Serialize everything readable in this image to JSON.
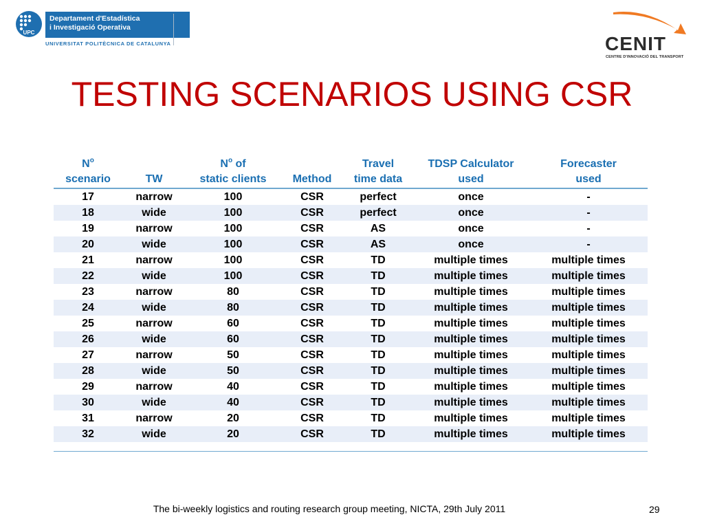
{
  "header": {
    "upc_line1": "Departament d'Estadística",
    "upc_line2": "i Investigació Operativa",
    "upc_mark": "UPC",
    "upc_university": "UNIVERSITAT POLITÈCNICA DE CATALUNYA",
    "cenit_name": "CENIT",
    "cenit_subtitle": "CENTRE D'INNOVACIÓ DEL TRANSPORT",
    "cenit_arrow_color": "#f07a23"
  },
  "slide": {
    "title": "TESTING SCENARIOS USING CSR"
  },
  "table": {
    "headers": [
      {
        "line1": "N",
        "sup": "o",
        "line1_rest": "",
        "line2": "scenario"
      },
      {
        "line1": "",
        "sup": "",
        "line1_rest": "",
        "line2": "TW"
      },
      {
        "line1": "N",
        "sup": "o",
        "line1_rest": " of",
        "line2": "static clients"
      },
      {
        "line1": "",
        "sup": "",
        "line1_rest": "",
        "line2": "Method"
      },
      {
        "line1": "Travel",
        "sup": "",
        "line1_rest": "",
        "line2": "time data"
      },
      {
        "line1": "TDSP Calculator",
        "sup": "",
        "line1_rest": "",
        "line2": "used"
      },
      {
        "line1": "Forecaster",
        "sup": "",
        "line1_rest": "",
        "line2": "used"
      }
    ],
    "rows": [
      [
        "17",
        "narrow",
        "100",
        "CSR",
        "perfect",
        "once",
        "-"
      ],
      [
        "18",
        "wide",
        "100",
        "CSR",
        "perfect",
        "once",
        "-"
      ],
      [
        "19",
        "narrow",
        "100",
        "CSR",
        "AS",
        "once",
        "-"
      ],
      [
        "20",
        "wide",
        "100",
        "CSR",
        "AS",
        "once",
        "-"
      ],
      [
        "21",
        "narrow",
        "100",
        "CSR",
        "TD",
        "multiple times",
        "multiple times"
      ],
      [
        "22",
        "wide",
        "100",
        "CSR",
        "TD",
        "multiple times",
        "multiple times"
      ],
      [
        "23",
        "narrow",
        "80",
        "CSR",
        "TD",
        "multiple times",
        "multiple times"
      ],
      [
        "24",
        "wide",
        "80",
        "CSR",
        "TD",
        "multiple times",
        "multiple times"
      ],
      [
        "25",
        "narrow",
        "60",
        "CSR",
        "TD",
        "multiple times",
        "multiple times"
      ],
      [
        "26",
        "wide",
        "60",
        "CSR",
        "TD",
        "multiple times",
        "multiple times"
      ],
      [
        "27",
        "narrow",
        "50",
        "CSR",
        "TD",
        "multiple times",
        "multiple times"
      ],
      [
        "28",
        "wide",
        "50",
        "CSR",
        "TD",
        "multiple times",
        "multiple times"
      ],
      [
        "29",
        "narrow",
        "40",
        "CSR",
        "TD",
        "multiple times",
        "multiple times"
      ],
      [
        "30",
        "wide",
        "40",
        "CSR",
        "TD",
        "multiple times",
        "multiple times"
      ],
      [
        "31",
        "narrow",
        "20",
        "CSR",
        "TD",
        "multiple times",
        "multiple times"
      ],
      [
        "32",
        "wide",
        "20",
        "CSR",
        "TD",
        "multiple times",
        "multiple times"
      ]
    ]
  },
  "footer": {
    "text": "The bi-weekly logistics and routing research group meeting, NICTA, 29th July 2011",
    "page_number": "29"
  }
}
